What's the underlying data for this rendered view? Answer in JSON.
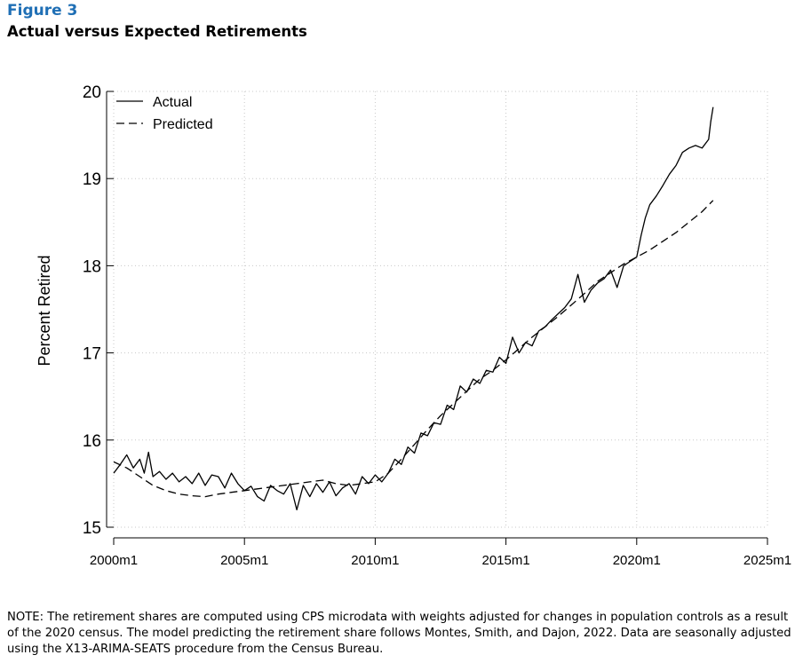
{
  "header": {
    "figure_label": "Figure 3",
    "title": "Actual versus Expected Retirements"
  },
  "note": "NOTE: The retirement shares are computed using CPS microdata with weights adjusted for changes in population controls as a result of the 2020 census. The model predicting the retirement share follows Montes, Smith, and Dajon, 2022. Data are seasonally adjusted using the X13-ARIMA-SEATS procedure from the Census Bureau.",
  "chart_data": {
    "type": "line",
    "ylabel": "Percent Retired",
    "xlabel": "",
    "xlim": [
      2000,
      2025
    ],
    "ylim": [
      15,
      20
    ],
    "x_ticks": [
      {
        "value": 2000,
        "label": "2000m1"
      },
      {
        "value": 2005,
        "label": "2005m1"
      },
      {
        "value": 2010,
        "label": "2010m1"
      },
      {
        "value": 2015,
        "label": "2015m1"
      },
      {
        "value": 2020,
        "label": "2020m1"
      },
      {
        "value": 2025,
        "label": "2025m1"
      }
    ],
    "y_ticks": [
      15,
      16,
      17,
      18,
      19,
      20
    ],
    "grid": "dotted",
    "legend": "top-left",
    "series": [
      {
        "name": "Actual",
        "style": "solid",
        "color": "#000000",
        "x": [
          2000.0,
          2000.25,
          2000.5,
          2000.75,
          2001.0,
          2001.17,
          2001.33,
          2001.5,
          2001.75,
          2002.0,
          2002.25,
          2002.5,
          2002.75,
          2003.0,
          2003.25,
          2003.5,
          2003.75,
          2004.0,
          2004.25,
          2004.5,
          2004.75,
          2005.0,
          2005.25,
          2005.5,
          2005.75,
          2006.0,
          2006.25,
          2006.5,
          2006.75,
          2007.0,
          2007.25,
          2007.5,
          2007.75,
          2008.0,
          2008.25,
          2008.5,
          2008.75,
          2009.0,
          2009.25,
          2009.5,
          2009.75,
          2010.0,
          2010.25,
          2010.5,
          2010.75,
          2011.0,
          2011.25,
          2011.5,
          2011.75,
          2012.0,
          2012.25,
          2012.5,
          2012.75,
          2013.0,
          2013.25,
          2013.5,
          2013.75,
          2014.0,
          2014.25,
          2014.5,
          2014.75,
          2015.0,
          2015.25,
          2015.5,
          2015.75,
          2016.0,
          2016.25,
          2016.5,
          2016.75,
          2017.0,
          2017.25,
          2017.5,
          2017.75,
          2018.0,
          2018.25,
          2018.5,
          2018.75,
          2019.0,
          2019.25,
          2019.5,
          2019.75,
          2020.0,
          2020.17,
          2020.33,
          2020.5,
          2020.75,
          2021.0,
          2021.25,
          2021.5,
          2021.75,
          2022.0,
          2022.25,
          2022.5,
          2022.75,
          2022.83,
          2022.92
        ],
        "values": [
          15.62,
          15.72,
          15.83,
          15.68,
          15.78,
          15.62,
          15.86,
          15.58,
          15.64,
          15.55,
          15.62,
          15.52,
          15.58,
          15.5,
          15.62,
          15.48,
          15.6,
          15.58,
          15.45,
          15.62,
          15.5,
          15.42,
          15.47,
          15.35,
          15.3,
          15.48,
          15.42,
          15.38,
          15.5,
          15.2,
          15.48,
          15.35,
          15.5,
          15.4,
          15.52,
          15.36,
          15.45,
          15.5,
          15.38,
          15.58,
          15.5,
          15.6,
          15.52,
          15.62,
          15.78,
          15.72,
          15.92,
          15.85,
          16.08,
          16.05,
          16.2,
          16.18,
          16.4,
          16.35,
          16.62,
          16.55,
          16.7,
          16.65,
          16.8,
          16.78,
          16.95,
          16.88,
          17.18,
          17.0,
          17.12,
          17.08,
          17.25,
          17.3,
          17.38,
          17.45,
          17.52,
          17.62,
          17.9,
          17.58,
          17.72,
          17.8,
          17.85,
          17.95,
          17.75,
          18.0,
          18.05,
          18.1,
          18.35,
          18.55,
          18.7,
          18.8,
          18.92,
          19.05,
          19.15,
          19.3,
          19.35,
          19.38,
          19.35,
          19.45,
          19.65,
          19.82
        ]
      },
      {
        "name": "Predicted",
        "style": "dashed",
        "color": "#000000",
        "x": [
          2000.0,
          2000.5,
          2001.0,
          2001.5,
          2002.0,
          2002.5,
          2003.0,
          2003.5,
          2004.0,
          2004.5,
          2005.0,
          2005.5,
          2006.0,
          2006.5,
          2007.0,
          2007.5,
          2008.0,
          2008.5,
          2009.0,
          2009.5,
          2010.0,
          2010.5,
          2011.0,
          2011.5,
          2012.0,
          2012.5,
          2013.0,
          2013.5,
          2014.0,
          2014.5,
          2015.0,
          2015.5,
          2016.0,
          2016.5,
          2017.0,
          2017.5,
          2018.0,
          2018.5,
          2019.0,
          2019.5,
          2020.0,
          2020.5,
          2021.0,
          2021.5,
          2022.0,
          2022.5,
          2022.92
        ],
        "values": [
          15.75,
          15.68,
          15.58,
          15.48,
          15.42,
          15.38,
          15.36,
          15.35,
          15.38,
          15.4,
          15.42,
          15.44,
          15.46,
          15.48,
          15.5,
          15.52,
          15.54,
          15.5,
          15.48,
          15.5,
          15.52,
          15.62,
          15.78,
          15.95,
          16.12,
          16.28,
          16.42,
          16.56,
          16.7,
          16.8,
          16.92,
          17.05,
          17.18,
          17.3,
          17.42,
          17.55,
          17.68,
          17.82,
          17.92,
          18.02,
          18.1,
          18.18,
          18.28,
          18.38,
          18.5,
          18.62,
          18.75
        ]
      }
    ]
  }
}
